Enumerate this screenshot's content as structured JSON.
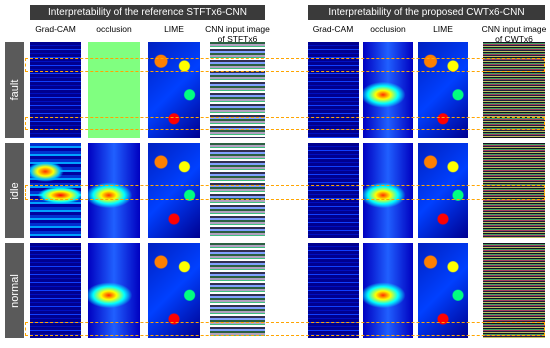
{
  "header": {
    "left_title": "Interpretability of the reference STFTx6-CNN",
    "right_title": "Interpretability of the proposed CWTx6-CNN"
  },
  "columns": {
    "left": [
      "Grad-CAM",
      "occlusion",
      "LIME",
      "CNN input image of STFTx6"
    ],
    "right": [
      "Grad-CAM",
      "occlusion",
      "LIME",
      "CNN input image of CWTx6"
    ]
  },
  "rows": [
    "fault",
    "idle",
    "normal"
  ]
}
